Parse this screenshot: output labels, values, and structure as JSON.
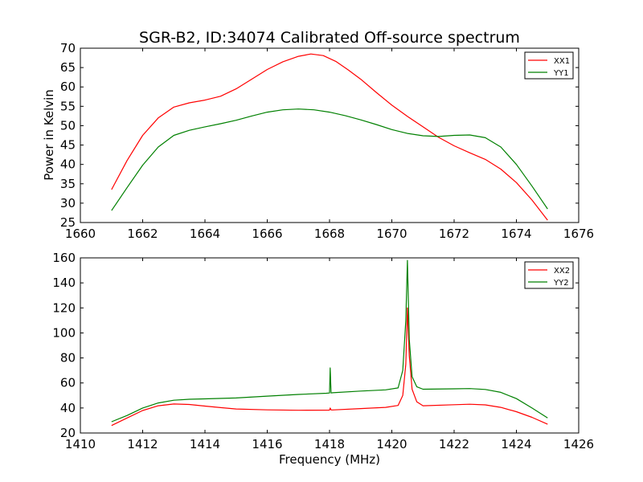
{
  "figure_title": "SGR-B2, ID:34074 Calibrated Off-source spectrum",
  "colors": {
    "xx": "#ff0000",
    "yy": "#008000"
  },
  "chart_data": [
    {
      "type": "line",
      "title": "SGR-B2, ID:34074 Calibrated Off-source spectrum",
      "xlabel": "",
      "ylabel": "Power in Kelvin",
      "xlim": [
        1660,
        1676
      ],
      "ylim": [
        25,
        70
      ],
      "xticks": [
        1660,
        1662,
        1664,
        1666,
        1668,
        1670,
        1672,
        1674,
        1676
      ],
      "yticks": [
        25,
        30,
        35,
        40,
        45,
        50,
        55,
        60,
        65,
        70
      ],
      "legend": "top-right",
      "grid": false,
      "series": [
        {
          "name": "XX1",
          "color": "#ff0000",
          "x": [
            1661.0,
            1661.5,
            1662.0,
            1662.5,
            1663.0,
            1663.5,
            1664.0,
            1664.5,
            1665.0,
            1665.5,
            1666.0,
            1666.5,
            1667.0,
            1667.4,
            1667.8,
            1668.2,
            1668.6,
            1669.0,
            1669.5,
            1670.0,
            1670.5,
            1671.0,
            1671.5,
            1672.0,
            1672.5,
            1673.0,
            1673.5,
            1674.0,
            1674.5,
            1675.0
          ],
          "y": [
            33.5,
            41.0,
            47.5,
            52.0,
            54.8,
            55.9,
            56.6,
            57.6,
            59.5,
            62.0,
            64.5,
            66.5,
            67.9,
            68.5,
            68.1,
            66.6,
            64.4,
            62.0,
            58.6,
            55.3,
            52.4,
            49.7,
            47.0,
            44.8,
            43.0,
            41.3,
            38.8,
            35.3,
            30.8,
            25.6
          ]
        },
        {
          "name": "YY1",
          "color": "#008000",
          "x": [
            1661.0,
            1661.5,
            1662.0,
            1662.5,
            1663.0,
            1663.5,
            1664.0,
            1664.5,
            1665.0,
            1665.5,
            1666.0,
            1666.5,
            1667.0,
            1667.5,
            1668.0,
            1668.5,
            1669.0,
            1669.5,
            1670.0,
            1670.5,
            1671.0,
            1671.5,
            1672.0,
            1672.5,
            1673.0,
            1673.5,
            1674.0,
            1674.5,
            1675.0
          ],
          "y": [
            28.1,
            34.0,
            39.8,
            44.5,
            47.5,
            48.8,
            49.7,
            50.5,
            51.4,
            52.5,
            53.5,
            54.1,
            54.3,
            54.1,
            53.5,
            52.6,
            51.5,
            50.3,
            49.0,
            48.0,
            47.4,
            47.2,
            47.5,
            47.6,
            46.9,
            44.5,
            40.0,
            34.4,
            28.5
          ]
        }
      ]
    },
    {
      "type": "line",
      "title": "",
      "xlabel": "Frequency (MHz)",
      "ylabel": "",
      "xlim": [
        1410,
        1426
      ],
      "ylim": [
        20,
        160
      ],
      "xticks": [
        1410,
        1412,
        1414,
        1416,
        1418,
        1420,
        1422,
        1424,
        1426
      ],
      "yticks": [
        20,
        40,
        60,
        80,
        100,
        120,
        140,
        160
      ],
      "legend": "top-right",
      "grid": false,
      "series": [
        {
          "name": "XX2",
          "color": "#ff0000",
          "x": [
            1411.0,
            1411.5,
            1412.0,
            1412.5,
            1413.0,
            1413.5,
            1414.0,
            1414.5,
            1415.0,
            1416.0,
            1417.0,
            1418.0,
            1418.02,
            1418.05,
            1418.1,
            1419.0,
            1419.8,
            1420.2,
            1420.35,
            1420.45,
            1420.5,
            1420.56,
            1420.65,
            1420.8,
            1421.0,
            1422.0,
            1422.5,
            1423.0,
            1423.5,
            1424.0,
            1424.5,
            1425.0
          ],
          "y": [
            26.0,
            32.0,
            38.0,
            41.8,
            43.2,
            42.8,
            41.5,
            40.3,
            39.2,
            38.5,
            38.2,
            38.3,
            40.0,
            38.4,
            38.4,
            39.5,
            40.5,
            42.0,
            50.0,
            75.0,
            120.0,
            82.0,
            55.0,
            45.0,
            41.8,
            42.6,
            43.0,
            42.5,
            40.5,
            37.0,
            32.5,
            27.0
          ]
        },
        {
          "name": "YY2",
          "color": "#008000",
          "x": [
            1411.0,
            1411.5,
            1412.0,
            1412.5,
            1413.0,
            1413.5,
            1414.0,
            1415.0,
            1416.0,
            1417.0,
            1417.9,
            1418.0,
            1418.02,
            1418.05,
            1418.1,
            1419.0,
            1419.8,
            1420.2,
            1420.35,
            1420.45,
            1420.5,
            1420.56,
            1420.65,
            1420.8,
            1421.0,
            1422.0,
            1422.5,
            1423.0,
            1423.5,
            1424.0,
            1424.5,
            1425.0
          ],
          "y": [
            29.0,
            34.0,
            40.0,
            44.0,
            46.2,
            47.0,
            47.3,
            48.0,
            49.5,
            50.8,
            51.8,
            52.0,
            72.0,
            52.0,
            52.2,
            53.5,
            54.5,
            56.0,
            70.0,
            110.0,
            158.0,
            95.0,
            65.0,
            57.0,
            55.0,
            55.3,
            55.5,
            54.8,
            52.5,
            47.5,
            40.0,
            32.0
          ]
        }
      ]
    }
  ]
}
